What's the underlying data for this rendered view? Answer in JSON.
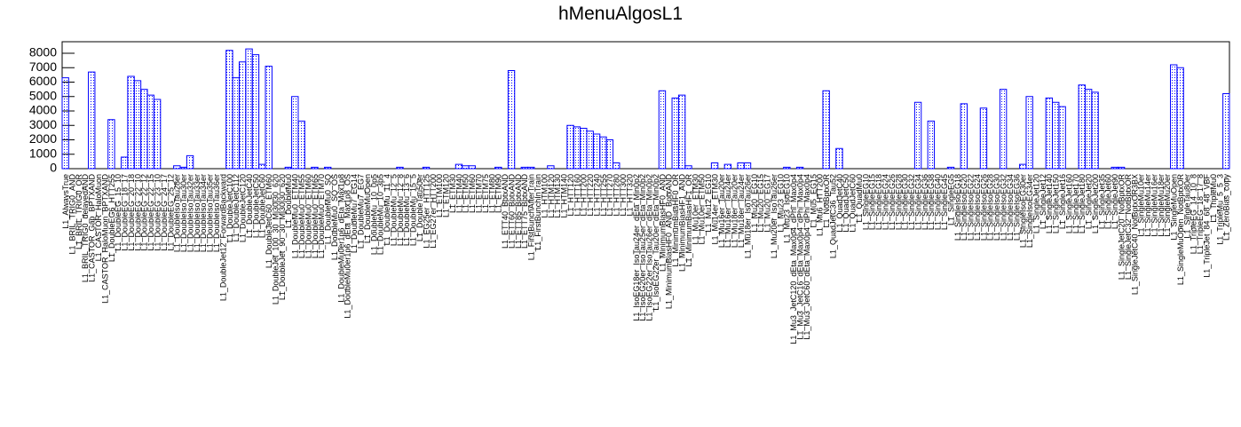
{
  "chart_data": {
    "type": "bar",
    "title": "hMenuAlgosL1",
    "categories": [
      "L1_AlwaysTrue",
      "L1_BRIL_TRIG0_AND",
      "L1_BRIL_TRIG0_OR",
      "L1_BRIL_TRIG0_delayedAND",
      "L1_CASTOR_Gap_BPTXAND",
      "L1_CASTOR_HaloMuon",
      "L1_CASTOR_HaloMuon_BPTXAND",
      "L1_DoubleEG6_HTT255",
      "L1_DoubleEG_15_10",
      "L1_DoubleEG_18_17",
      "L1_DoubleEG_20_18",
      "L1_DoubleEG_22_10",
      "L1_DoubleEG_22_12",
      "L1_DoubleEG_22_15",
      "L1_DoubleEG_23_10",
      "L1_DoubleEG_24_17",
      "L1_DoubleEG_25_12",
      "L1_DoubleIsoTau28er",
      "L1_DoubleIsoTau30er",
      "L1_DoubleIsoTau32er",
      "L1_DoubleIsoTau33er",
      "L1_DoubleIsoTau34er",
      "L1_DoubleIsoTau35er",
      "L1_DoubleIsoTau36er",
      "L1_DoubleJet12_ForwardBackward",
      "L1_DoubleJetC100",
      "L1_DoubleJetC112",
      "L1_DoubleJetC120",
      "L1_DoubleJetC40",
      "L1_DoubleJetC50",
      "L1_DoubleJetC60",
      "L1_DoubleJetC60_ETM60",
      "L1_DoubleJet_100_30_Mj30j30_620",
      "L1_DoubleJet_90_30_Mj30j30_620",
      "L1_DoubleMu0",
      "L1_DoubleMu0_ETM40",
      "L1_DoubleMu0_ETM55",
      "L1_DoubleMu0_ETM60",
      "L1_DoubleMu0_ETM65",
      "L1_DoubleMu0_ETM70",
      "L1_DoubleMu0_SQ",
      "L1_DoubleMu0_SQ_OS",
      "L1_DoubleMu0er1p6_dEta_Max1p8",
      "L1_DoubleMu0er1p6_dEta_Max1p8_OS",
      "L1_DoubleMu7_EG14",
      "L1_DoubleMu7_EG7",
      "L1_DoubleMuOpen",
      "L1_DoubleMu_10_0p5",
      "L1_DoubleMu_10_3p5",
      "L1_DoubleMu_11_4",
      "L1_DoubleMu_12_5",
      "L1_DoubleMu_12_8",
      "L1_DoubleMu_13_6",
      "L1_DoubleMu_15_5",
      "L1_DoubleTau50er",
      "L1_EG25er_HTT125",
      "L1_EG27er_HTT200",
      "L1_ETM100",
      "L1_ETM120",
      "L1_ETM30",
      "L1_ETM40",
      "L1_ETM50",
      "L1_ETM60",
      "L1_ETM70",
      "L1_ETM75",
      "L1_ETM80",
      "L1_ETM90",
      "L1_ETT40_BptxAND",
      "L1_ETT60_BptxAND",
      "L1_ETT85_BptxAND",
      "L1_ETT75_BptxAND",
      "L1_FirstBunchAfterTrain",
      "L1_FirstBunchInTrain",
      "L1_HTM100",
      "L1_HTM120",
      "L1_HTM130",
      "L1_HTM140",
      "L1_HTT120",
      "L1_HTT160",
      "L1_HTT200",
      "L1_HTT220",
      "L1_HTT240",
      "L1_HTT255",
      "L1_HTT270",
      "L1_HTT280",
      "L1_HTT300",
      "L1_HTT320",
      "L1_IsoEG18er_IsoTau24er_dEta_Min0p2",
      "L1_IsoEG20er_IsoTau25er_dEta_Min0p2",
      "L1_IsoEG22er_IsoTau26er_dEta_Min0p2",
      "L1_IsoEG22er_Tau20er_dEta_Min0p2",
      "L1_MinimumBiasHF0_AND",
      "L1_MinimumBiasHF0_AND_BptxAND",
      "L1_MinimumBiasHF0_OR",
      "L1_MinimumBiasHF1_AND",
      "L1_MinimumBiasHF1_OR",
      "L1_Mu10er_ETM30",
      "L1_Mu10er_ETM50",
      "L1_Mu12_EG10",
      "L1_Mu14er_ETM30",
      "L1_Mu16er_Tau20er",
      "L1_Mu16er_Tau24er",
      "L1_Mu18er_Tau20er",
      "L1_Mu18er_Tau24er",
      "L1_Mu18er_IsoTau26er",
      "L1_Mu20_EG10",
      "L1_Mu20_EG15",
      "L1_Mu20_EG17",
      "L1_Mu20er_IsoTau26er",
      "L1_Mu23_EG10",
      "L1_Mu23_IsoEG10",
      "L1_Mu3_JetC120_dEta_Max0p4_dPhi_Max0p4",
      "L1_Mu3_JetC16_dEta_Max0p4_dPhi_Max0p4",
      "L1_Mu3_JetC60_dEta_Max0p4_dPhi_Max0p4",
      "L1_Mu5_EG15",
      "L1_Mu6_HTT200",
      "L1_NotBptxOR",
      "L1_QuadJetC36_Tau52",
      "L1_QuadJetC40",
      "L1_QuadJetC50",
      "L1_QuadJetC60",
      "L1_QuadMu0",
      "L1_SingleEG10",
      "L1_SingleEG15",
      "L1_SingleEG18",
      "L1_SingleEG24",
      "L1_SingleEG26",
      "L1_SingleEG28",
      "L1_SingleEG30",
      "L1_SingleEG32",
      "L1_SingleEG34",
      "L1_SingleEG36",
      "L1_SingleEG38",
      "L1_SingleEG40",
      "L1_SingleEG45",
      "L1_SingleEG5",
      "L1_SingleIsoEG18",
      "L1_SingleIsoEG20",
      "L1_SingleIsoEG22",
      "L1_SingleIsoEG24",
      "L1_SingleIsoEG26",
      "L1_SingleIsoEG28",
      "L1_SingleIsoEG30",
      "L1_SingleIsoEG32",
      "L1_SingleIsoEG34",
      "L1_SingleIsoEG36",
      "L1_SingleIsoEG30er",
      "L1_SingleIsoEG34er",
      "L1_SingleJet120",
      "L1_SingleJet12",
      "L1_SingleJet140",
      "L1_SingleJet150",
      "L1_SingleJet16",
      "L1_SingleJet160",
      "L1_SingleJet170",
      "L1_SingleJet180",
      "L1_SingleJet20",
      "L1_SingleJet200",
      "L1_SingleJet35",
      "L1_SingleJet60",
      "L1_SingleJet90",
      "L1_SingleJetC20_NotBptxOR",
      "L1_SingleJetC32_NotBptxOR",
      "L1_SingleJetC40_NotBptxOR3BX",
      "L1_SingleMu10er",
      "L1_SingleMu14er",
      "L1_SingleMu16er",
      "L1_SingleMu18er",
      "L1_SingleMu20er",
      "L1_SingleMuOpen",
      "L1_SingleMuOpen_NotBptxOR",
      "L1_SingleTau80er",
      "L1_TripleEG_14_10_8",
      "L1_TripleEG_18_17_8",
      "L1_TripleJet_84_68_48_VBF",
      "L1_TripleMu0",
      "L1_TripleMu_5_5_3",
      "L1_ZeroBias_copy"
    ],
    "values": [
      6300,
      0,
      0,
      0,
      6700,
      0,
      0,
      3400,
      0,
      800,
      6400,
      6100,
      5500,
      5100,
      4800,
      0,
      0,
      200,
      100,
      900,
      0,
      0,
      0,
      0,
      0,
      8200,
      6300,
      7400,
      8300,
      7900,
      300,
      7100,
      0,
      0,
      100,
      5000,
      3300,
      0,
      100,
      0,
      100,
      0,
      0,
      0,
      0,
      0,
      0,
      0,
      0,
      0,
      0,
      100,
      0,
      0,
      0,
      100,
      0,
      0,
      0,
      0,
      300,
      200,
      200,
      0,
      0,
      0,
      100,
      0,
      6800,
      0,
      100,
      100,
      0,
      0,
      200,
      0,
      0,
      3000,
      2900,
      2800,
      2600,
      2400,
      2200,
      2000,
      400,
      0,
      0,
      0,
      0,
      0,
      0,
      5400,
      0,
      4900,
      5100,
      200,
      0,
      0,
      0,
      400,
      0,
      300,
      0,
      400,
      400,
      0,
      0,
      0,
      0,
      0,
      100,
      0,
      100,
      0,
      0,
      0,
      5400,
      0,
      1400,
      0,
      0,
      0,
      0,
      0,
      0,
      0,
      0,
      0,
      0,
      0,
      4600,
      0,
      3300,
      0,
      0,
      100,
      0,
      4500,
      0,
      0,
      4200,
      0,
      0,
      5500,
      0,
      0,
      300,
      5000,
      0,
      0,
      4900,
      4600,
      4300,
      0,
      0,
      5800,
      5500,
      5300,
      0,
      0,
      100,
      100,
      0,
      0,
      0,
      0,
      0,
      0,
      0,
      7200,
      7000,
      0,
      0,
      0,
      0,
      0,
      0,
      5200
    ],
    "color": "#0000ff",
    "ylim": [
      0,
      8800
    ],
    "yticks": [
      0,
      1000,
      2000,
      3000,
      4000,
      5000,
      6000,
      7000,
      8000
    ],
    "grid": false
  }
}
